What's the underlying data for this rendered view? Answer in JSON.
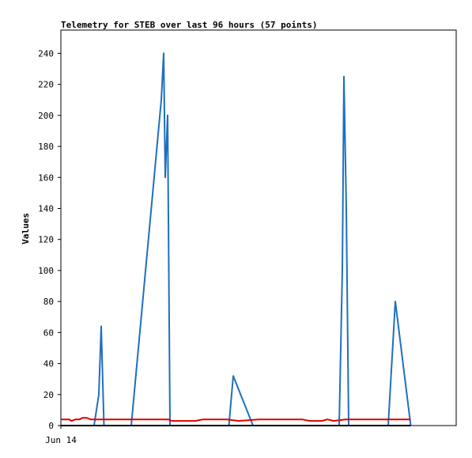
{
  "chart_data": {
    "type": "line",
    "title": "Telemetry for STEB over last 96 hours (57 points)",
    "xlabel": "",
    "ylabel": "Values",
    "ylim": [
      0,
      255
    ],
    "xlim": [
      0,
      100
    ],
    "yticks": [
      0,
      20,
      40,
      60,
      80,
      100,
      120,
      140,
      160,
      180,
      200,
      220,
      240
    ],
    "xticks": [
      {
        "x": 0,
        "label": "Jun 14"
      }
    ],
    "grid": false,
    "legend": "none",
    "series": [
      {
        "color": "#1f6fbf",
        "x": [
          8.4,
          9.6,
          10.2,
          10.9,
          17.8,
          25.4,
          26.0,
          26.4,
          27.0,
          27.6,
          42.5,
          43.6,
          48.6,
          70.4,
          71.2,
          71.6,
          72.2,
          72.8,
          82.8,
          84.6,
          88.5
        ],
        "y": [
          0,
          20,
          64,
          0,
          0,
          210,
          240,
          160,
          200,
          0,
          0,
          32,
          0,
          0,
          100,
          225,
          140,
          0,
          0,
          80,
          0
        ]
      },
      {
        "color": "#e00000",
        "x": [
          0,
          2.1,
          2.7,
          3.7,
          4.7,
          5.5,
          6.5,
          7.5,
          8.4,
          12,
          20,
          27.2,
          28,
          32,
          34,
          36,
          42,
          45,
          50,
          56,
          61,
          63,
          64.7,
          66,
          67.4,
          69,
          72,
          76,
          80,
          84,
          88.5
        ],
        "y": [
          4,
          4,
          3,
          4,
          4,
          5,
          5,
          4,
          4,
          4,
          4,
          4,
          3,
          3,
          3,
          4,
          4,
          3,
          4,
          4,
          4,
          3,
          3,
          3,
          4,
          3,
          4,
          4,
          4,
          4,
          4
        ]
      },
      {
        "color": "#000000",
        "x": [
          0,
          88.5
        ],
        "y": [
          0,
          0
        ]
      }
    ]
  }
}
